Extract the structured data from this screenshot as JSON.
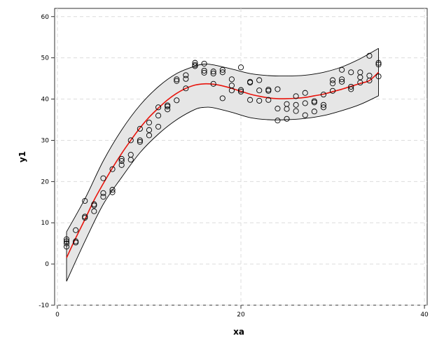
{
  "chart_data": {
    "type": "scatter",
    "xlabel": "xa",
    "ylabel": "y1",
    "xlim": [
      -0.3,
      40.3
    ],
    "ylim": [
      -10,
      62
    ],
    "xticks": [
      0,
      20,
      40
    ],
    "yticks": [
      -10,
      0,
      10,
      20,
      30,
      40,
      50,
      60
    ],
    "grid": true,
    "colors": {
      "fit_line": "#e8140c",
      "band_fill": "#e6e6e6",
      "band_edge": "#000000",
      "points": "#000000",
      "grid": "#dcdcdc"
    },
    "points": [
      [
        1,
        6
      ],
      [
        1,
        5.5
      ],
      [
        1,
        5
      ],
      [
        1,
        4.2
      ],
      [
        2,
        8.2
      ],
      [
        2,
        5.5
      ],
      [
        2,
        5.2
      ],
      [
        3,
        15.3
      ],
      [
        3,
        11.5
      ],
      [
        3,
        11.2
      ],
      [
        4,
        14.5
      ],
      [
        4,
        14.2
      ],
      [
        4,
        12.8
      ],
      [
        5,
        20.8
      ],
      [
        5,
        17.2
      ],
      [
        5,
        16.3
      ],
      [
        6,
        23
      ],
      [
        6,
        18
      ],
      [
        6,
        17.4
      ],
      [
        7,
        25.5
      ],
      [
        7,
        25
      ],
      [
        7,
        24
      ],
      [
        8,
        30
      ],
      [
        8,
        26.5
      ],
      [
        8,
        25.3
      ],
      [
        9,
        32.8
      ],
      [
        9,
        30
      ],
      [
        9,
        29.6
      ],
      [
        10,
        34.3
      ],
      [
        10,
        32.5
      ],
      [
        10,
        31.2
      ],
      [
        11,
        38
      ],
      [
        11,
        36
      ],
      [
        11,
        33.3
      ],
      [
        12,
        38.5
      ],
      [
        12,
        38.2
      ],
      [
        12,
        37.5
      ],
      [
        13,
        44.8
      ],
      [
        13,
        44.4
      ],
      [
        13,
        39.7
      ],
      [
        14,
        45.8
      ],
      [
        14,
        44.9
      ],
      [
        14,
        42.6
      ],
      [
        15,
        48.8
      ],
      [
        15,
        48.3
      ],
      [
        15,
        48
      ],
      [
        16,
        48.6
      ],
      [
        16,
        46.9
      ],
      [
        16,
        46.4
      ],
      [
        17,
        46.7
      ],
      [
        17,
        46.2
      ],
      [
        17,
        43.7
      ],
      [
        18,
        47.1
      ],
      [
        18,
        46.5
      ],
      [
        18,
        40.2
      ],
      [
        19,
        44.8
      ],
      [
        19,
        43.3
      ],
      [
        19,
        42.1
      ],
      [
        20,
        47.7
      ],
      [
        20,
        42.2
      ],
      [
        20,
        41.8
      ],
      [
        21,
        44.2
      ],
      [
        21,
        44.0
      ],
      [
        21,
        39.8
      ],
      [
        22,
        44.6
      ],
      [
        22,
        42.1
      ],
      [
        22,
        39.6
      ],
      [
        23,
        42.3
      ],
      [
        23,
        42.0
      ],
      [
        23,
        39.8
      ],
      [
        24,
        42.4
      ],
      [
        24,
        37.7
      ],
      [
        24,
        34.8
      ],
      [
        25,
        38.8
      ],
      [
        25,
        37.6
      ],
      [
        25,
        35.2
      ],
      [
        26,
        40.7
      ],
      [
        26,
        38.6
      ],
      [
        26,
        37.1
      ],
      [
        27,
        41.5
      ],
      [
        27,
        39.0
      ],
      [
        27,
        36.1
      ],
      [
        28,
        39.5
      ],
      [
        28,
        39.2
      ],
      [
        28,
        37.0
      ],
      [
        29,
        41.1
      ],
      [
        29,
        38.6
      ],
      [
        29,
        38.0
      ],
      [
        30,
        44.6
      ],
      [
        30,
        43.8
      ],
      [
        30,
        42.0
      ],
      [
        31,
        47.1
      ],
      [
        31,
        44.8
      ],
      [
        31,
        44.2
      ],
      [
        32,
        46.5
      ],
      [
        32,
        43.0
      ],
      [
        32,
        42.4
      ],
      [
        33,
        46.5
      ],
      [
        33,
        45.3
      ],
      [
        33,
        44.0
      ],
      [
        34,
        50.5
      ],
      [
        34,
        45.7
      ],
      [
        34,
        44.5
      ],
      [
        35,
        48.8
      ],
      [
        35,
        48.4
      ],
      [
        35,
        45.5
      ]
    ],
    "fit_line": {
      "x": [
        1,
        2,
        3,
        4,
        5,
        6,
        7,
        8,
        9,
        10,
        11,
        12,
        13,
        14,
        15,
        16,
        17,
        18,
        19,
        20,
        21,
        22,
        23,
        24,
        25,
        26,
        27,
        28,
        29,
        30,
        31,
        32,
        33,
        34,
        35
      ],
      "y": [
        1.5,
        6.3,
        10.8,
        15.5,
        19.5,
        23.3,
        26.8,
        30,
        33,
        35.6,
        37.8,
        39.8,
        41.4,
        42.6,
        43.4,
        43.7,
        43.6,
        43.2,
        42.6,
        41.9,
        41.2,
        40.7,
        40.3,
        40.1,
        40.1,
        40.2,
        40.4,
        40.8,
        41.2,
        41.8,
        42.4,
        43.1,
        43.8,
        44.5,
        46.5
      ]
    },
    "band_upper": {
      "x": [
        1,
        3,
        5,
        7,
        9,
        11,
        13,
        15,
        16,
        17,
        19,
        21,
        23,
        25,
        27,
        29,
        31,
        33,
        35
      ],
      "y": [
        7.8,
        15.8,
        25,
        32.5,
        38.5,
        43,
        46.2,
        48,
        48.5,
        48.3,
        47.3,
        46.2,
        45.7,
        45.6,
        45.8,
        46.5,
        47.8,
        49.8,
        52.3
      ]
    },
    "band_lower": {
      "x": [
        1,
        3,
        5,
        7,
        9,
        11,
        13,
        15,
        16,
        17,
        19,
        21,
        23,
        25,
        27,
        29,
        31,
        33,
        35
      ],
      "y": [
        -4.2,
        5.5,
        14.5,
        21,
        27,
        31.5,
        35,
        37.5,
        38,
        37.9,
        36.8,
        35.5,
        35,
        35,
        35.3,
        36,
        37.2,
        38.7,
        40.8
      ]
    }
  }
}
